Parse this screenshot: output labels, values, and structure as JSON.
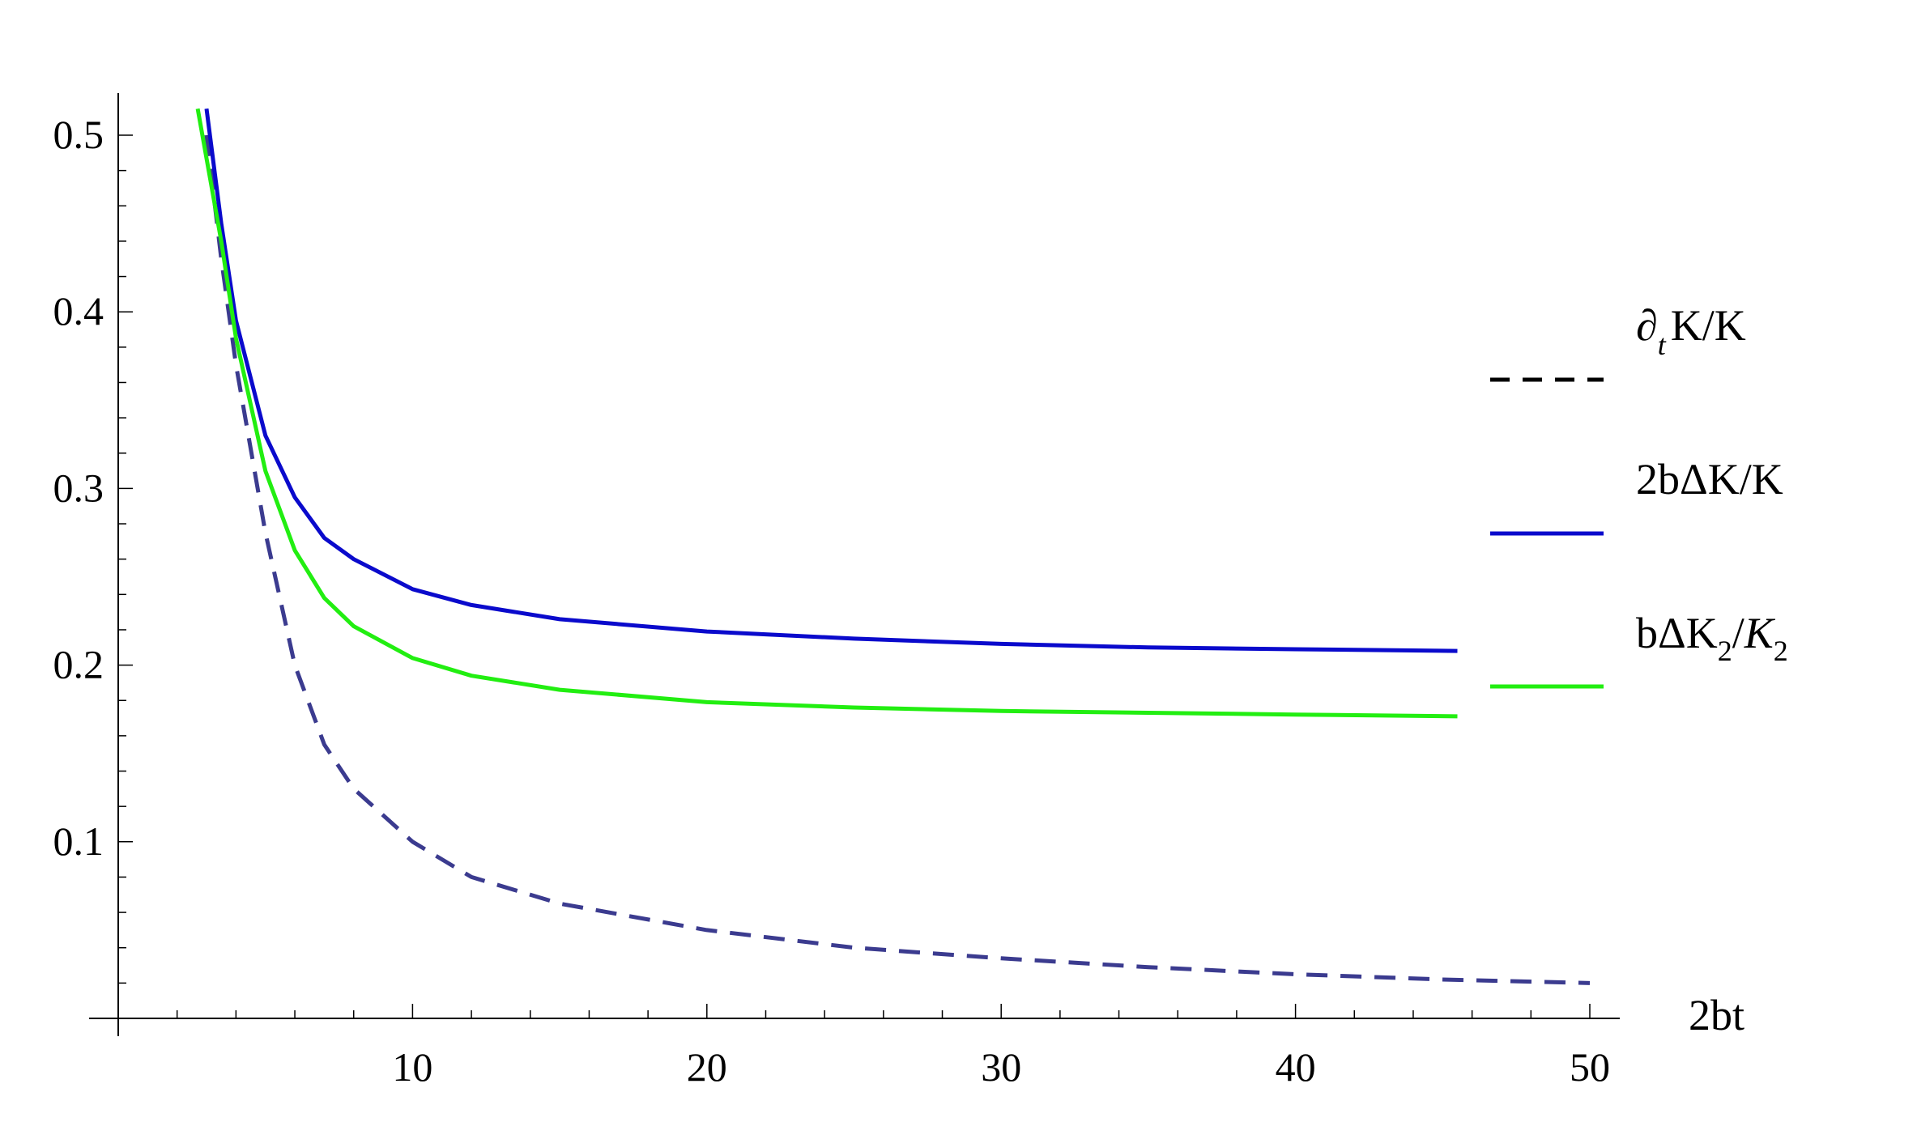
{
  "chart_data": {
    "type": "line",
    "title": "",
    "xlabel": "2bt",
    "ylabel": "",
    "xlim": [
      0,
      51
    ],
    "ylim": [
      0,
      0.52
    ],
    "x_ticks": [
      10,
      20,
      30,
      40,
      50
    ],
    "x_tick_labels": [
      "10",
      "20",
      "30",
      "40",
      "50"
    ],
    "y_ticks": [
      0.1,
      0.2,
      0.3,
      0.4,
      0.5
    ],
    "y_tick_labels": [
      "0.1",
      "0.2",
      "0.3",
      "0.4",
      "0.5"
    ],
    "grid": false,
    "legend_position": "right",
    "series": [
      {
        "name": "∂tK/K",
        "style": "dashed",
        "color": "#3b3b8f",
        "x": [
          3,
          3.5,
          4,
          5,
          6,
          7,
          8,
          10,
          12,
          15,
          20,
          25,
          30,
          35,
          40,
          45,
          50
        ],
        "y": [
          0.5,
          0.43,
          0.37,
          0.275,
          0.2,
          0.155,
          0.13,
          0.1,
          0.08,
          0.065,
          0.05,
          0.04,
          0.034,
          0.029,
          0.025,
          0.022,
          0.02
        ]
      },
      {
        "name": "2bΔK/K",
        "style": "solid",
        "color": "#0a0acc",
        "x": [
          3,
          3.5,
          4,
          5,
          6,
          7,
          8,
          10,
          12,
          15,
          20,
          25,
          30,
          35,
          40,
          45.5
        ],
        "y": [
          0.515,
          0.45,
          0.395,
          0.33,
          0.295,
          0.272,
          0.26,
          0.243,
          0.234,
          0.226,
          0.219,
          0.215,
          0.212,
          0.21,
          0.209,
          0.208
        ]
      },
      {
        "name": "bΔK2/K2",
        "style": "solid",
        "color": "#22ee11",
        "x": [
          2.7,
          3.5,
          4,
          5,
          6,
          7,
          8,
          10,
          12,
          15,
          20,
          25,
          30,
          35,
          40,
          45.5
        ],
        "y": [
          0.515,
          0.44,
          0.385,
          0.31,
          0.265,
          0.238,
          0.222,
          0.204,
          0.194,
          0.186,
          0.179,
          0.176,
          0.174,
          0.173,
          0.172,
          0.171
        ]
      }
    ]
  },
  "legend": [
    {
      "base": "∂",
      "sub": "t",
      "rest": "K/K"
    },
    {
      "text": "2bΔK/K"
    },
    {
      "p1": "bΔK",
      "sub1": "2",
      "slash": "/",
      "ital": "K",
      "sub2": "2"
    }
  ]
}
